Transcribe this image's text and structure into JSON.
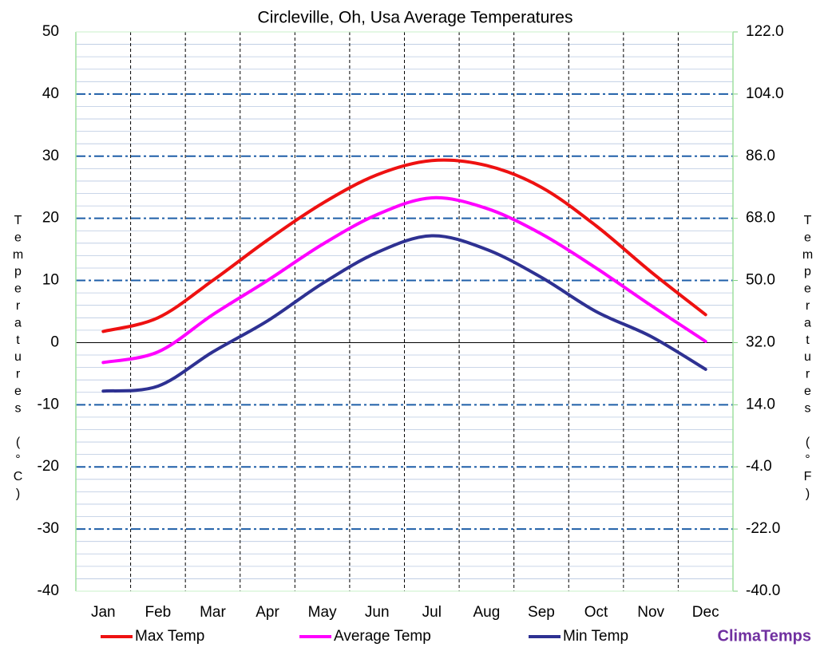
{
  "chart_data": {
    "type": "line",
    "title": "Circleville, Oh, Usa Average Temperatures",
    "y_label": "Temperatures (°C)",
    "y2_label": "Temperatures (°F)",
    "brand": "ClimaTemps",
    "categories": [
      "Jan",
      "Feb",
      "Mar",
      "Apr",
      "May",
      "Jun",
      "Jul",
      "Aug",
      "Sep",
      "Oct",
      "Nov",
      "Dec"
    ],
    "series": [
      {
        "name": "Max Temp",
        "color": "#ee1111",
        "values": [
          1.8,
          4.0,
          10.0,
          16.5,
          22.4,
          27.0,
          29.3,
          28.5,
          25.0,
          18.8,
          11.4,
          4.5
        ]
      },
      {
        "name": "Average Temp",
        "color": "#ff00ff",
        "values": [
          -3.2,
          -1.5,
          4.5,
          10.0,
          15.8,
          20.6,
          23.3,
          21.6,
          17.5,
          12.0,
          6.0,
          0.2
        ]
      },
      {
        "name": "Min Temp",
        "color": "#2e3192",
        "values": [
          -7.8,
          -7.0,
          -1.5,
          3.5,
          9.5,
          14.5,
          17.2,
          15.0,
          10.5,
          5.0,
          1.0,
          -4.3
        ]
      }
    ],
    "ylim": [
      -40,
      50
    ],
    "yticks": [
      -40,
      -30,
      -20,
      -10,
      0,
      10,
      20,
      30,
      40,
      50
    ],
    "y_minor_ticks": [
      -38,
      -36,
      -34,
      -32,
      -28,
      -26,
      -24,
      -22,
      -18,
      -16,
      -14,
      -12,
      -8,
      -6,
      -4,
      -2,
      2,
      4,
      6,
      8,
      12,
      14,
      16,
      18,
      22,
      24,
      26,
      28,
      32,
      34,
      36,
      38,
      42,
      44,
      46,
      48
    ],
    "y2lim": [
      -40,
      122
    ],
    "y2ticks": [
      {
        "value": -40,
        "label": "-40.0"
      },
      {
        "value": -22,
        "label": "-22.0"
      },
      {
        "value": -4,
        "label": "-4.0"
      },
      {
        "value": 14,
        "label": "14.0"
      },
      {
        "value": 32,
        "label": "32.0"
      },
      {
        "value": 50,
        "label": "50.0"
      },
      {
        "value": 68,
        "label": "68.0"
      },
      {
        "value": 86,
        "label": "86.0"
      },
      {
        "value": 104,
        "label": "104.0"
      },
      {
        "value": 122,
        "label": "122.0"
      }
    ],
    "grid": true,
    "legend": "bottom"
  }
}
